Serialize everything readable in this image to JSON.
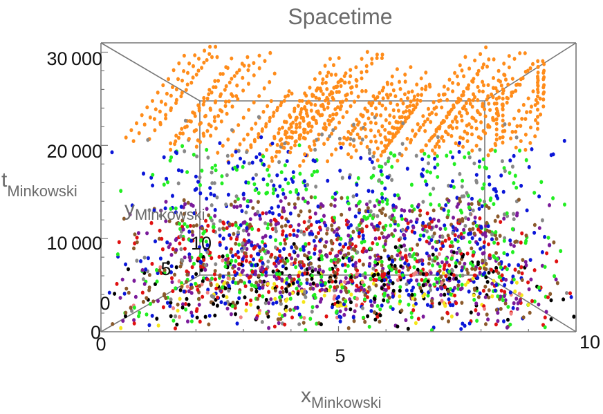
{
  "chart_data": {
    "type": "scatter",
    "title": "Spacetime",
    "xlabel": {
      "main": "x",
      "sub": "Minkowski"
    },
    "ylabel": {
      "main": "y",
      "sub": "Minkowski"
    },
    "zlabel": {
      "main": "t",
      "sub": "Minkowski"
    },
    "xlim": [
      0,
      10
    ],
    "ylim": [
      0,
      10
    ],
    "zlim": [
      0,
      31000
    ],
    "x_ticks": [
      "0",
      "5",
      "10"
    ],
    "y_ticks": [
      "0",
      "5",
      "10"
    ],
    "z_ticks": [
      "0",
      "10 000",
      "20 000",
      "30 000"
    ],
    "z_tick_values": [
      0,
      10000,
      20000,
      30000
    ],
    "grid": false,
    "box": true,
    "series": [
      {
        "color": "#ff8c1a",
        "count": 900,
        "z_range": [
          19000,
          31000
        ],
        "pattern": "diagonal-streaks"
      },
      {
        "color": "#0b16d8",
        "count": 420,
        "z_range": [
          0,
          21000
        ]
      },
      {
        "color": "#22ee22",
        "count": 420,
        "z_range": [
          0,
          21000
        ]
      },
      {
        "color": "#888888",
        "count": 200,
        "z_range": [
          0,
          24000
        ]
      },
      {
        "color": "#e01010",
        "count": 330,
        "z_range": [
          0,
          12000
        ]
      },
      {
        "color": "#7a1a9a",
        "count": 360,
        "z_range": [
          0,
          14000
        ]
      },
      {
        "color": "#8b5a2b",
        "count": 330,
        "z_range": [
          0,
          14000
        ]
      },
      {
        "color": "#000000",
        "count": 170,
        "z_range": [
          0,
          6000
        ]
      },
      {
        "color": "#f5e61a",
        "count": 80,
        "z_range": [
          0,
          3000
        ]
      },
      {
        "color": "#f08080",
        "count": 50,
        "z_range": [
          0,
          5000
        ]
      }
    ]
  }
}
